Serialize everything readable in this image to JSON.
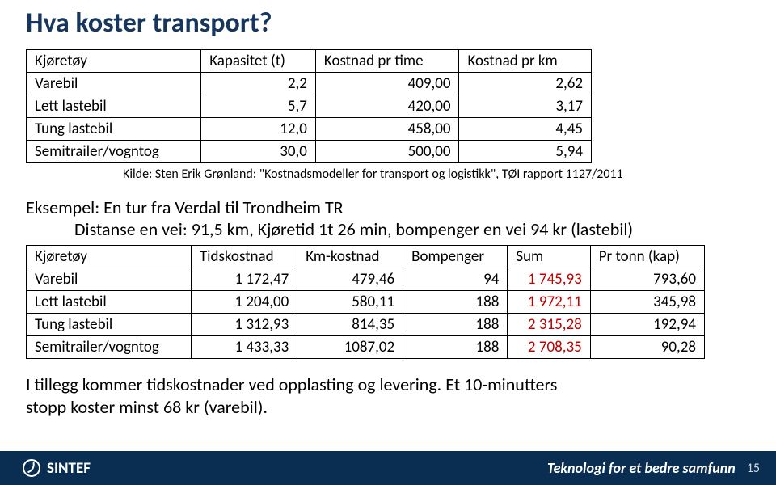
{
  "title": "Hva koster transport?",
  "table1": {
    "headers": [
      "Kjøretøy",
      "Kapasitet (t)",
      "Kostnad pr time",
      "Kostnad pr km"
    ],
    "rows": [
      [
        "Varebil",
        "2,2",
        "409,00",
        "2,62"
      ],
      [
        "Lett lastebil",
        "5,7",
        "420,00",
        "3,17"
      ],
      [
        "Tung lastebil",
        "12,0",
        "458,00",
        "4,45"
      ],
      [
        "Semitrailer/vogntog",
        "30,0",
        "500,00",
        "5,94"
      ]
    ]
  },
  "kilde": "Kilde: Sten Erik Grønland: \"Kostnadsmodeller for transport og logistikk\", TØI rapport 1127/2011",
  "example_heading": "Eksempel: En tur fra Verdal til Trondheim TR",
  "example_sub": "Distanse en vei: 91,5 km, Kjøretid 1t 26 min, bompenger en vei 94 kr (lastebil)",
  "table2": {
    "headers": [
      "Kjøretøy",
      "Tidskostnad",
      "Km-kostnad",
      "Bompenger",
      "Sum",
      "Pr tonn (kap)"
    ],
    "rows": [
      [
        "Varebil",
        "1 172,47",
        "479,46",
        "94",
        "1 745,93",
        "793,60"
      ],
      [
        "Lett lastebil",
        "1 204,00",
        "580,11",
        "188",
        "1 972,11",
        "345,98"
      ],
      [
        "Tung lastebil",
        "1 312,93",
        "814,35",
        "188",
        "2 315,28",
        "192,94"
      ],
      [
        "Semitrailer/vogntog",
        "1 433,33",
        "1087,02",
        "188",
        "2 708,35",
        "90,28"
      ]
    ],
    "red_col_index": 4
  },
  "footer_text1": "I tillegg kommer tidskostnader ved opplasting og levering. Et 10-minutters",
  "footer_text2": "stopp koster minst 68 kr (varebil).",
  "logo_text": "SINTEF",
  "tagline": "Teknologi for et bedre samfunn",
  "page_num": "15",
  "colors": {
    "title": "#17365d",
    "bar": "#0a2e52",
    "red": "#c00000"
  }
}
